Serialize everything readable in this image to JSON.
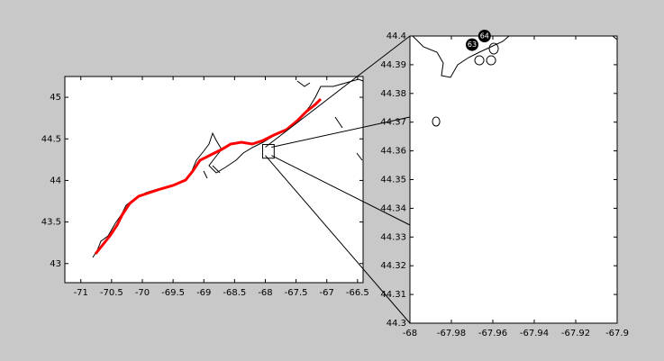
{
  "chart_data": [
    {
      "type": "map",
      "xlim": [
        -71.26,
        -66.41
      ],
      "ylim": [
        42.77,
        45.25
      ],
      "xticks": [
        -71,
        -70.5,
        -70,
        -69.5,
        -69,
        -68.5,
        -68,
        -67.5,
        -67,
        -66.5
      ],
      "yticks": [
        43,
        43.5,
        44,
        44.5,
        45
      ]
    },
    {
      "type": "scatter",
      "xlim": [
        -68,
        -67.9
      ],
      "ylim": [
        44.3,
        44.4
      ],
      "xticks": [
        -68,
        -67.98,
        -67.96,
        -67.94,
        -67.92,
        -67.9
      ],
      "yticks": [
        44.3,
        44.31,
        44.32,
        44.33,
        44.34,
        44.35,
        44.36,
        44.37,
        44.38,
        44.39,
        44.4
      ],
      "x": [
        -67.97,
        -67.964
      ],
      "values": [
        44.397,
        44.4
      ],
      "labels": [
        "63",
        "64"
      ],
      "color": "#000000"
    }
  ]
}
